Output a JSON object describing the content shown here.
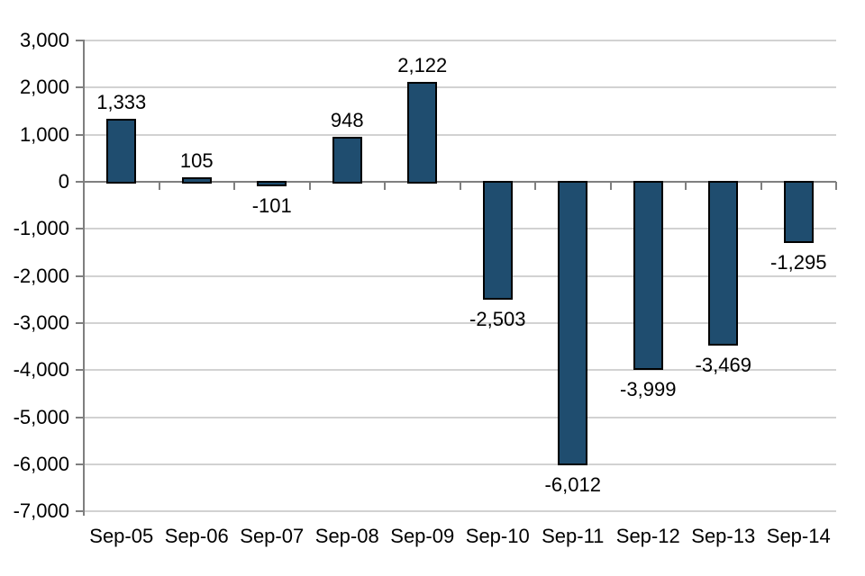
{
  "chart_data": {
    "type": "bar",
    "title": "",
    "xlabel": "",
    "ylabel": "",
    "categories": [
      "Sep-05",
      "Sep-06",
      "Sep-07",
      "Sep-08",
      "Sep-09",
      "Sep-10",
      "Sep-11",
      "Sep-12",
      "Sep-13",
      "Sep-14"
    ],
    "values": [
      1333,
      105,
      -101,
      948,
      2122,
      -2503,
      -6012,
      -3999,
      -3469,
      -1295
    ],
    "data_labels": [
      "1,333",
      "105",
      "-101",
      "948",
      "2,122",
      "-2,503",
      "-6,012",
      "-3,999",
      "-3,469",
      "-1,295"
    ],
    "ylim": [
      -7000,
      3000
    ],
    "y_tick_interval": 1000,
    "y_ticks": [
      3000,
      2000,
      1000,
      0,
      -1000,
      -2000,
      -3000,
      -4000,
      -5000,
      -6000,
      -7000
    ],
    "y_tick_labels": [
      "3,000",
      "2,000",
      "1,000",
      "0",
      "-1,000",
      "-2,000",
      "-3,000",
      "-4,000",
      "-5,000",
      "-6,000",
      "-7,000"
    ],
    "grid": true,
    "legend": false,
    "colors": {
      "bar_fill": "#1F4D6F",
      "bar_border": "#000000",
      "gridline": "#D2D2D2",
      "axis_line": "#7F7F7F",
      "label_text": "#000000",
      "background": "#FFFFFF"
    }
  }
}
